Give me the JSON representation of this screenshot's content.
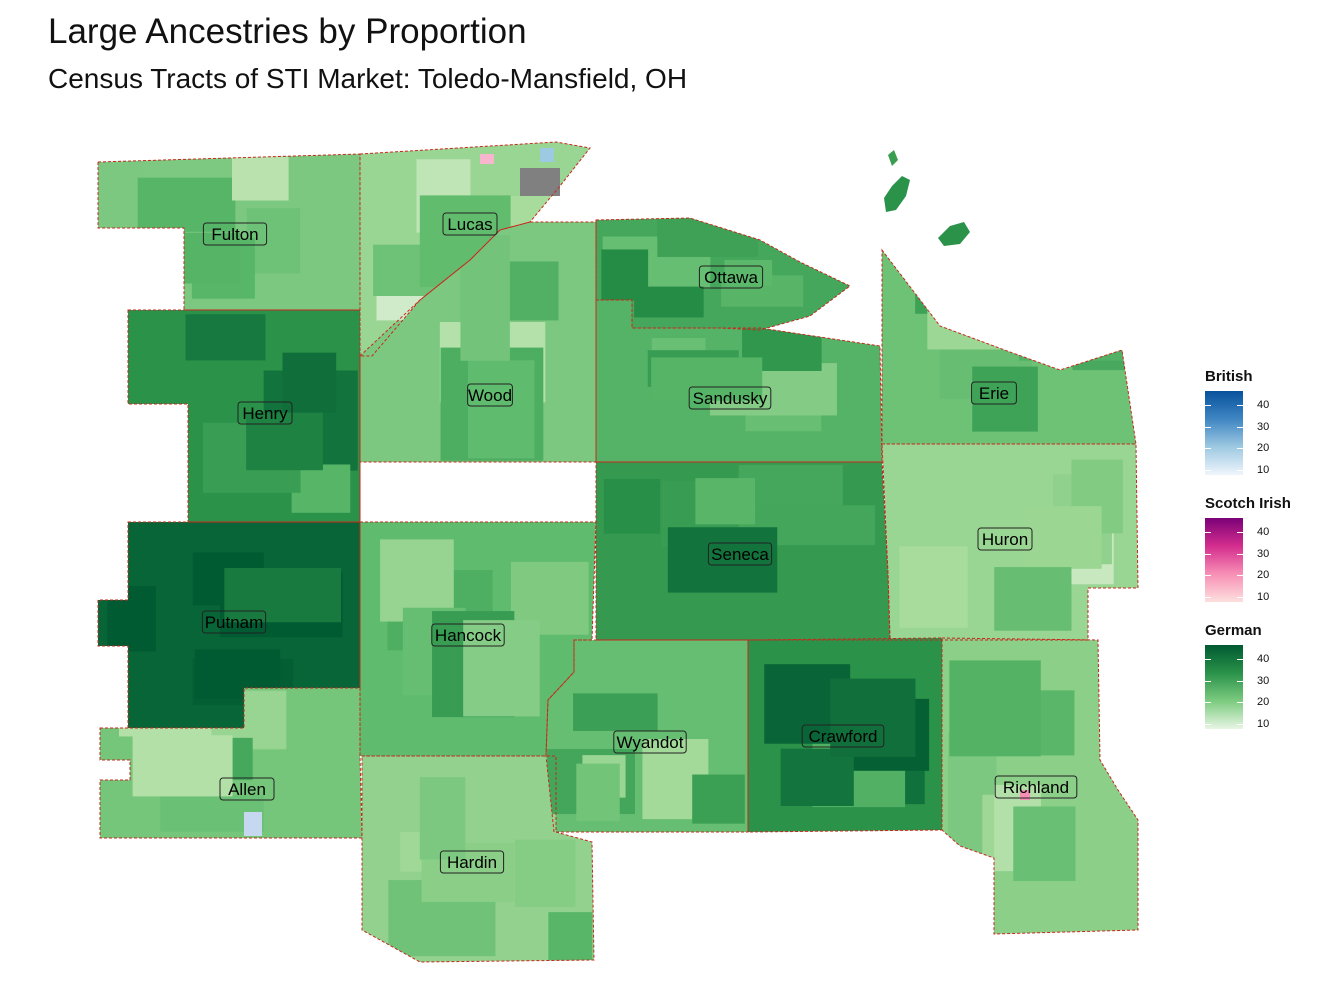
{
  "title": "Large Ancestries by Proportion",
  "subtitle": "Census Tracts of STI Market: Toledo-Mansfield, OH",
  "colors": {
    "german_scale": [
      "#e8f5e4",
      "#a8dc9c",
      "#5fbb6d",
      "#2a9249",
      "#005a32"
    ],
    "british_scale": [
      "#eef3fb",
      "#9ec9e2",
      "#3f86c2",
      "#08519c"
    ],
    "scotch_irish_scale": [
      "#fde0dd",
      "#f78fb5",
      "#e0368f",
      "#7a0177"
    ],
    "county_border": "#c8281e",
    "no_data": "#808080"
  },
  "counties": [
    {
      "name": "Fulton",
      "german_pct": 24
    },
    {
      "name": "Lucas",
      "german_pct": 20
    },
    {
      "name": "Ottawa",
      "german_pct": 33
    },
    {
      "name": "Erie",
      "german_pct": 26
    },
    {
      "name": "Henry",
      "german_pct": 38
    },
    {
      "name": "Wood",
      "german_pct": 24
    },
    {
      "name": "Sandusky",
      "german_pct": 30
    },
    {
      "name": "Huron",
      "german_pct": 20
    },
    {
      "name": "Putnam",
      "german_pct": 46
    },
    {
      "name": "Hancock",
      "german_pct": 28
    },
    {
      "name": "Seneca",
      "german_pct": 36
    },
    {
      "name": "Allen",
      "german_pct": 25
    },
    {
      "name": "Wyandot",
      "german_pct": 27
    },
    {
      "name": "Crawford",
      "german_pct": 38
    },
    {
      "name": "Richland",
      "german_pct": 22
    },
    {
      "name": "Hardin",
      "german_pct": 21
    }
  ],
  "legend": [
    {
      "title": "British",
      "ticks": [
        "40",
        "30",
        "20",
        "10"
      ],
      "gradient": [
        "#08519c",
        "#3f86c2",
        "#9ec9e2",
        "#f0f5fc"
      ]
    },
    {
      "title": "Scotch Irish",
      "ticks": [
        "40",
        "30",
        "20",
        "10"
      ],
      "gradient": [
        "#7a0177",
        "#d42d8e",
        "#f78fb5",
        "#fde0dd"
      ]
    },
    {
      "title": "German",
      "ticks": [
        "40",
        "30",
        "20",
        "10"
      ],
      "gradient": [
        "#005a32",
        "#2a9249",
        "#7ccb80",
        "#e8f5e4"
      ]
    }
  ]
}
